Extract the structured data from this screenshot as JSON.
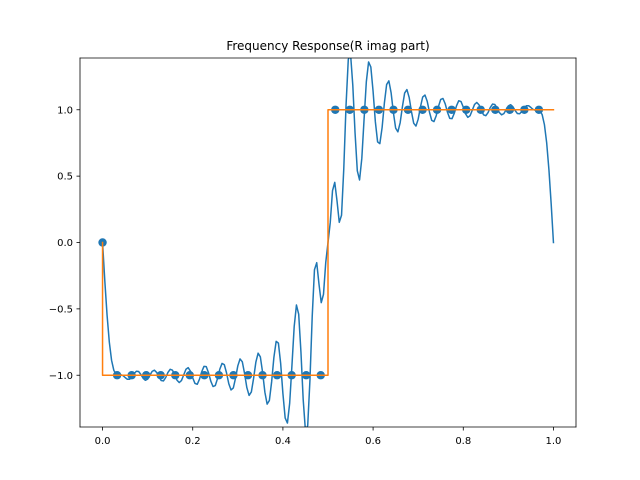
{
  "chart_data": {
    "type": "line",
    "title": "Frequency Response(R imag part)",
    "xlabel": "",
    "ylabel": "",
    "xlim": [
      -0.05,
      1.05
    ],
    "ylim": [
      -1.39,
      1.39
    ],
    "xticks": [
      0.0,
      0.2,
      0.4,
      0.6,
      0.8,
      1.0
    ],
    "xtick_labels": [
      "0.0",
      "0.2",
      "0.4",
      "0.6",
      "0.8",
      "1.0"
    ],
    "yticks": [
      -1.0,
      -0.5,
      0.0,
      0.5,
      1.0
    ],
    "ytick_labels": [
      "−1.0",
      "−0.5",
      "0.0",
      "0.5",
      "1.0"
    ],
    "grid": false,
    "legend": null,
    "colors": {
      "series1": "#1f77b4",
      "series2": "#ff7f0e"
    },
    "series": [
      {
        "type": "line",
        "color": "#1f77b4",
        "x": [
          0.0,
          0.005,
          0.01,
          0.015,
          0.02,
          0.025,
          0.03,
          0.035,
          0.04,
          0.045,
          0.05,
          0.055,
          0.06,
          0.065,
          0.07,
          0.075,
          0.08,
          0.085,
          0.09,
          0.095,
          0.1,
          0.105,
          0.11,
          0.115,
          0.12,
          0.125,
          0.13,
          0.135,
          0.14,
          0.145,
          0.15,
          0.155,
          0.16,
          0.165,
          0.17,
          0.175,
          0.18,
          0.185,
          0.19,
          0.195,
          0.2,
          0.205,
          0.21,
          0.215,
          0.22,
          0.225,
          0.23,
          0.235,
          0.24,
          0.245,
          0.25,
          0.255,
          0.26,
          0.265,
          0.27,
          0.275,
          0.28,
          0.285,
          0.29,
          0.295,
          0.3,
          0.305,
          0.31,
          0.315,
          0.32,
          0.325,
          0.33,
          0.335,
          0.34,
          0.345,
          0.35,
          0.355,
          0.36,
          0.365,
          0.37,
          0.375,
          0.38,
          0.385,
          0.39,
          0.395,
          0.4,
          0.405,
          0.41,
          0.415,
          0.42,
          0.425,
          0.43,
          0.435,
          0.44,
          0.445,
          0.45,
          0.455,
          0.46,
          0.465,
          0.47,
          0.475,
          0.48,
          0.485,
          0.49,
          0.495,
          0.5,
          0.505,
          0.51,
          0.515,
          0.52,
          0.525,
          0.53,
          0.535,
          0.54,
          0.545,
          0.55,
          0.555,
          0.56,
          0.565,
          0.57,
          0.575,
          0.58,
          0.585,
          0.59,
          0.595,
          0.6,
          0.605,
          0.61,
          0.615,
          0.62,
          0.625,
          0.63,
          0.635,
          0.64,
          0.645,
          0.65,
          0.655,
          0.66,
          0.665,
          0.67,
          0.675,
          0.68,
          0.685,
          0.69,
          0.695,
          0.7,
          0.705,
          0.71,
          0.715,
          0.72,
          0.725,
          0.73,
          0.735,
          0.74,
          0.745,
          0.75,
          0.755,
          0.76,
          0.765,
          0.77,
          0.775,
          0.78,
          0.785,
          0.79,
          0.795,
          0.8,
          0.805,
          0.81,
          0.815,
          0.82,
          0.825,
          0.83,
          0.835,
          0.84,
          0.845,
          0.85,
          0.855,
          0.86,
          0.865,
          0.87,
          0.875,
          0.88,
          0.885,
          0.89,
          0.895,
          0.9,
          0.905,
          0.91,
          0.915,
          0.92,
          0.925,
          0.93,
          0.935,
          0.94,
          0.945,
          0.95,
          0.955,
          0.96,
          0.965,
          0.97,
          0.975,
          0.98,
          0.985,
          0.99,
          0.995,
          1.0
        ],
        "y": [
          0.0,
          -0.288,
          -0.546,
          -0.75,
          -0.887,
          -0.963,
          -0.992,
          -0.997,
          -0.996,
          -1.002,
          -1.017,
          -1.03,
          -1.03,
          -1.013,
          -0.987,
          -0.97,
          -0.972,
          -0.994,
          -1.023,
          -1.038,
          -1.029,
          -1.0,
          -0.971,
          -0.962,
          -0.979,
          -1.012,
          -1.04,
          -1.043,
          -1.018,
          -0.979,
          -0.955,
          -0.962,
          -0.997,
          -1.037,
          -1.055,
          -1.04,
          -0.997,
          -0.955,
          -0.943,
          -0.97,
          -1.02,
          -1.062,
          -1.068,
          -1.03,
          -0.973,
          -0.933,
          -0.935,
          -0.981,
          -1.044,
          -1.085,
          -1.078,
          -1.025,
          -0.955,
          -0.911,
          -0.92,
          -0.983,
          -1.064,
          -1.111,
          -1.096,
          -1.021,
          -0.929,
          -0.877,
          -0.899,
          -0.988,
          -1.093,
          -1.152,
          -1.126,
          -1.023,
          -0.902,
          -0.834,
          -0.862,
          -0.98,
          -1.127,
          -1.218,
          -1.19,
          -1.049,
          -0.866,
          -0.745,
          -0.758,
          -0.91,
          -1.138,
          -1.322,
          -1.36,
          -1.211,
          -0.928,
          -0.634,
          -0.471,
          -0.54,
          -0.826,
          -1.184,
          -1.42,
          -1.379,
          -1.034,
          -0.556,
          -0.205,
          -0.152,
          -0.313,
          -0.453,
          -0.39,
          -0.15,
          0.0,
          0.15,
          0.39,
          0.453,
          0.313,
          0.152,
          0.205,
          0.556,
          1.034,
          1.379,
          1.42,
          1.184,
          0.826,
          0.54,
          0.471,
          0.634,
          0.928,
          1.211,
          1.36,
          1.322,
          1.138,
          0.91,
          0.758,
          0.745,
          0.866,
          1.049,
          1.19,
          1.218,
          1.127,
          0.98,
          0.862,
          0.834,
          0.902,
          1.023,
          1.126,
          1.152,
          1.093,
          0.988,
          0.899,
          0.877,
          0.929,
          1.021,
          1.096,
          1.111,
          1.064,
          0.983,
          0.92,
          0.911,
          0.955,
          1.025,
          1.078,
          1.085,
          1.044,
          0.981,
          0.935,
          0.933,
          0.973,
          1.03,
          1.068,
          1.062,
          1.02,
          0.97,
          0.943,
          0.955,
          0.997,
          1.04,
          1.055,
          1.037,
          0.997,
          0.962,
          0.955,
          0.979,
          1.018,
          1.043,
          1.04,
          1.012,
          0.979,
          0.962,
          0.971,
          1.0,
          1.029,
          1.038,
          1.023,
          0.994,
          0.972,
          0.97,
          0.987,
          1.013,
          1.03,
          1.03,
          1.017,
          1.002,
          0.996,
          0.997,
          0.992,
          0.963,
          0.887,
          0.75,
          0.546,
          0.288,
          0.0
        ]
      },
      {
        "type": "scatter",
        "color": "#1f77b4",
        "x": [
          0.0,
          0.0323,
          0.0645,
          0.0968,
          0.129,
          0.1613,
          0.1935,
          0.2258,
          0.2581,
          0.2903,
          0.3226,
          0.3548,
          0.3871,
          0.4194,
          0.4516,
          0.4839,
          0.5161,
          0.5484,
          0.5806,
          0.6129,
          0.6452,
          0.6774,
          0.7097,
          0.7419,
          0.7742,
          0.8065,
          0.8387,
          0.871,
          0.9032,
          0.9355,
          0.9677
        ],
        "y": [
          0.0,
          -1.0,
          -1.0,
          -1.0,
          -1.0,
          -1.0,
          -1.0,
          -1.0,
          -1.0,
          -1.0,
          -1.0,
          -1.0,
          -1.0,
          -1.0,
          -1.0,
          -1.0,
          1.0,
          1.0,
          1.0,
          1.0,
          1.0,
          1.0,
          1.0,
          1.0,
          1.0,
          1.0,
          1.0,
          1.0,
          1.0,
          1.0,
          1.0
        ]
      },
      {
        "type": "line",
        "color": "#ff7f0e",
        "x": [
          0.0,
          0.0,
          0.5,
          0.5,
          1.0
        ],
        "y": [
          0.0,
          -1.0,
          -1.0,
          1.0,
          1.0
        ]
      }
    ]
  }
}
